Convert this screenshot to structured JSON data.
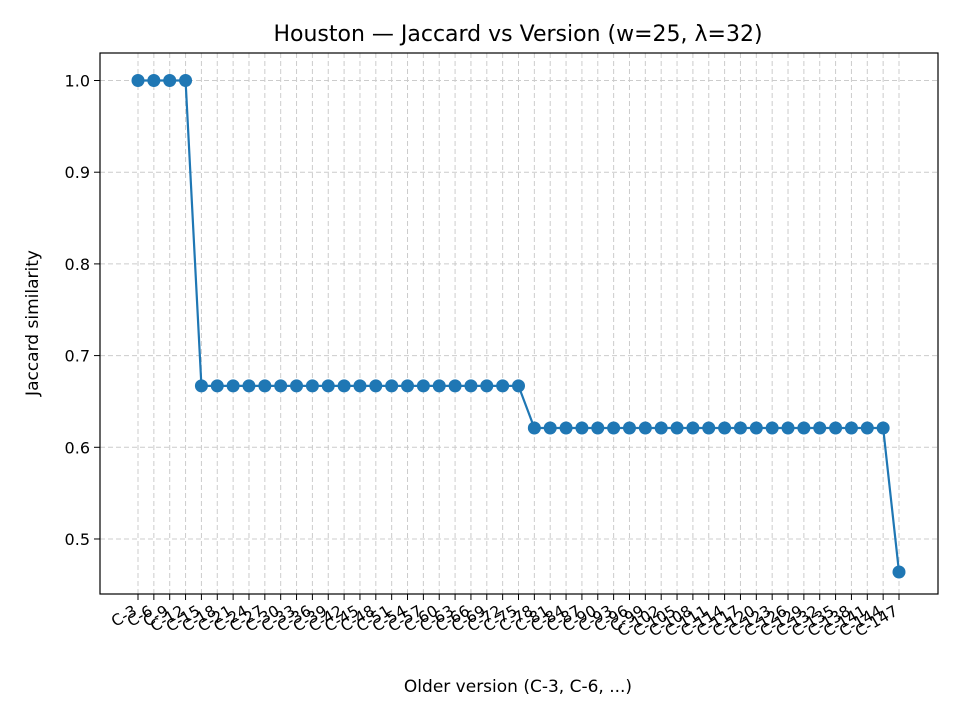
{
  "chart_data": {
    "type": "line",
    "title": "Houston — Jaccard vs Version (w=25, λ=32)",
    "xlabel": "Older version (C-3, C-6, ...)",
    "ylabel": "Jaccard similarity",
    "ylim": [
      0.44,
      1.03
    ],
    "yticks": [
      "0.5",
      "0.6",
      "0.7",
      "0.8",
      "0.9",
      "1.0"
    ],
    "grid": true,
    "line_color": "#1f77b4",
    "categories": [
      "C-3",
      "C-6",
      "C-9",
      "C-12",
      "C-15",
      "C-18",
      "C-21",
      "C-24",
      "C-27",
      "C-30",
      "C-33",
      "C-36",
      "C-39",
      "C-42",
      "C-45",
      "C-48",
      "C-51",
      "C-54",
      "C-57",
      "C-60",
      "C-63",
      "C-66",
      "C-69",
      "C-72",
      "C-75",
      "C-78",
      "C-81",
      "C-84",
      "C-87",
      "C-90",
      "C-93",
      "C-96",
      "C-99",
      "C-102",
      "C-105",
      "C-108",
      "C-111",
      "C-114",
      "C-117",
      "C-120",
      "C-123",
      "C-126",
      "C-129",
      "C-132",
      "C-135",
      "C-138",
      "C-141",
      "C-144",
      "C-147"
    ],
    "values": [
      1.0,
      1.0,
      1.0,
      1.0,
      0.667,
      0.667,
      0.667,
      0.667,
      0.667,
      0.667,
      0.667,
      0.667,
      0.667,
      0.667,
      0.667,
      0.667,
      0.667,
      0.667,
      0.667,
      0.667,
      0.667,
      0.667,
      0.667,
      0.667,
      0.667,
      0.621,
      0.621,
      0.621,
      0.621,
      0.621,
      0.621,
      0.621,
      0.621,
      0.621,
      0.621,
      0.621,
      0.621,
      0.621,
      0.621,
      0.621,
      0.621,
      0.621,
      0.621,
      0.621,
      0.621,
      0.621,
      0.621,
      0.621,
      0.464
    ]
  }
}
